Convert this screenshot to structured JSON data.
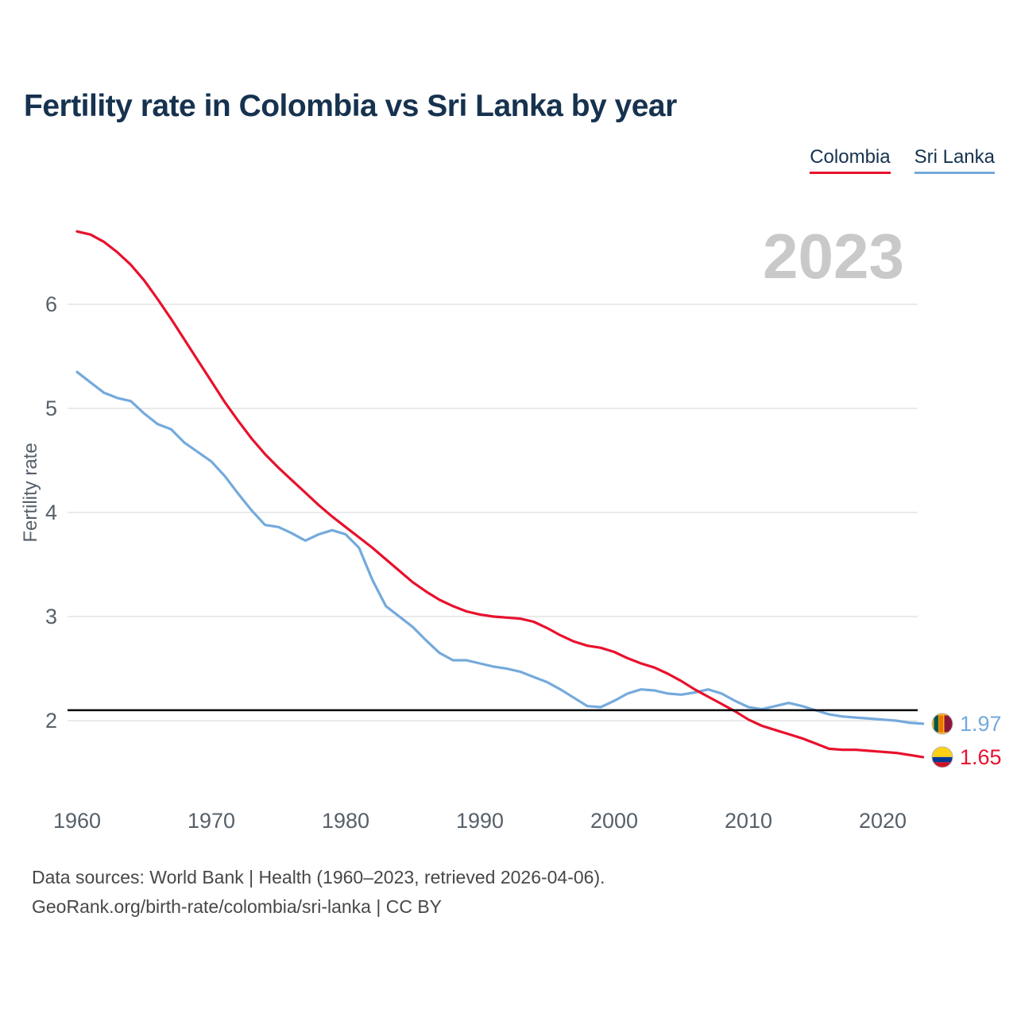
{
  "title": "Fertility rate in Colombia vs Sri Lanka by year",
  "watermark": "2023",
  "legend": [
    {
      "label": "Colombia",
      "color": "#e8112d"
    },
    {
      "label": "Sri Lanka",
      "color": "#74aadc"
    }
  ],
  "footer": {
    "line1": "Data sources: World Bank | Health (1960–2023, retrieved 2026-04-06).",
    "line2": "GeoRank.org/birth-rate/colombia/sri-lanka | CC BY"
  },
  "chart_data": {
    "type": "line",
    "title": "Fertility rate in Colombia vs Sri Lanka by year",
    "xlabel": "",
    "ylabel": "Fertility rate",
    "x_ticks": [
      1960,
      1970,
      1980,
      1990,
      2000,
      2010,
      2020
    ],
    "y_ticks": [
      2,
      3,
      4,
      5,
      6
    ],
    "xlim": [
      1960,
      2023
    ],
    "ylim": [
      1.4,
      6.9
    ],
    "grid": true,
    "legend_position": "top-right",
    "reference_line": 2.1,
    "colors": {
      "grid": "#e4e4e4",
      "tick_text": "#57606a",
      "watermark": "#c9c9c9",
      "reference": "#000000"
    },
    "x": [
      1960,
      1961,
      1962,
      1963,
      1964,
      1965,
      1966,
      1967,
      1968,
      1969,
      1970,
      1971,
      1972,
      1973,
      1974,
      1975,
      1976,
      1977,
      1978,
      1979,
      1980,
      1981,
      1982,
      1983,
      1984,
      1985,
      1986,
      1987,
      1988,
      1989,
      1990,
      1991,
      1992,
      1993,
      1994,
      1995,
      1996,
      1997,
      1998,
      1999,
      2000,
      2001,
      2002,
      2003,
      2004,
      2005,
      2006,
      2007,
      2008,
      2009,
      2010,
      2011,
      2012,
      2013,
      2014,
      2015,
      2016,
      2017,
      2018,
      2019,
      2020,
      2021,
      2022,
      2023
    ],
    "series": [
      {
        "name": "Colombia",
        "color": "#e8112d",
        "end_label": "1.65",
        "flag_icon": "colombia-flag-icon",
        "values": [
          6.7,
          6.67,
          6.6,
          6.5,
          6.38,
          6.23,
          6.05,
          5.86,
          5.66,
          5.46,
          5.26,
          5.06,
          4.88,
          4.71,
          4.56,
          4.43,
          4.31,
          4.19,
          4.07,
          3.96,
          3.86,
          3.76,
          3.66,
          3.55,
          3.44,
          3.33,
          3.24,
          3.16,
          3.1,
          3.05,
          3.02,
          3.0,
          2.99,
          2.98,
          2.95,
          2.89,
          2.82,
          2.76,
          2.72,
          2.7,
          2.66,
          2.6,
          2.55,
          2.51,
          2.45,
          2.38,
          2.3,
          2.23,
          2.16,
          2.09,
          2.01,
          1.95,
          1.91,
          1.87,
          1.83,
          1.78,
          1.73,
          1.72,
          1.72,
          1.71,
          1.7,
          1.69,
          1.67,
          1.65
        ]
      },
      {
        "name": "Sri Lanka",
        "color": "#74aadc",
        "end_label": "1.97",
        "flag_icon": "sri-lanka-flag-icon",
        "values": [
          5.35,
          5.25,
          5.15,
          5.1,
          5.07,
          4.95,
          4.85,
          4.8,
          4.67,
          4.58,
          4.49,
          4.35,
          4.18,
          4.02,
          3.88,
          3.86,
          3.8,
          3.73,
          3.79,
          3.83,
          3.79,
          3.66,
          3.35,
          3.1,
          3.0,
          2.9,
          2.77,
          2.65,
          2.58,
          2.58,
          2.55,
          2.52,
          2.5,
          2.47,
          2.42,
          2.37,
          2.3,
          2.22,
          2.14,
          2.13,
          2.19,
          2.26,
          2.3,
          2.29,
          2.26,
          2.25,
          2.27,
          2.3,
          2.26,
          2.19,
          2.13,
          2.11,
          2.14,
          2.17,
          2.14,
          2.1,
          2.06,
          2.04,
          2.03,
          2.02,
          2.01,
          2.0,
          1.98,
          1.97
        ]
      }
    ]
  }
}
